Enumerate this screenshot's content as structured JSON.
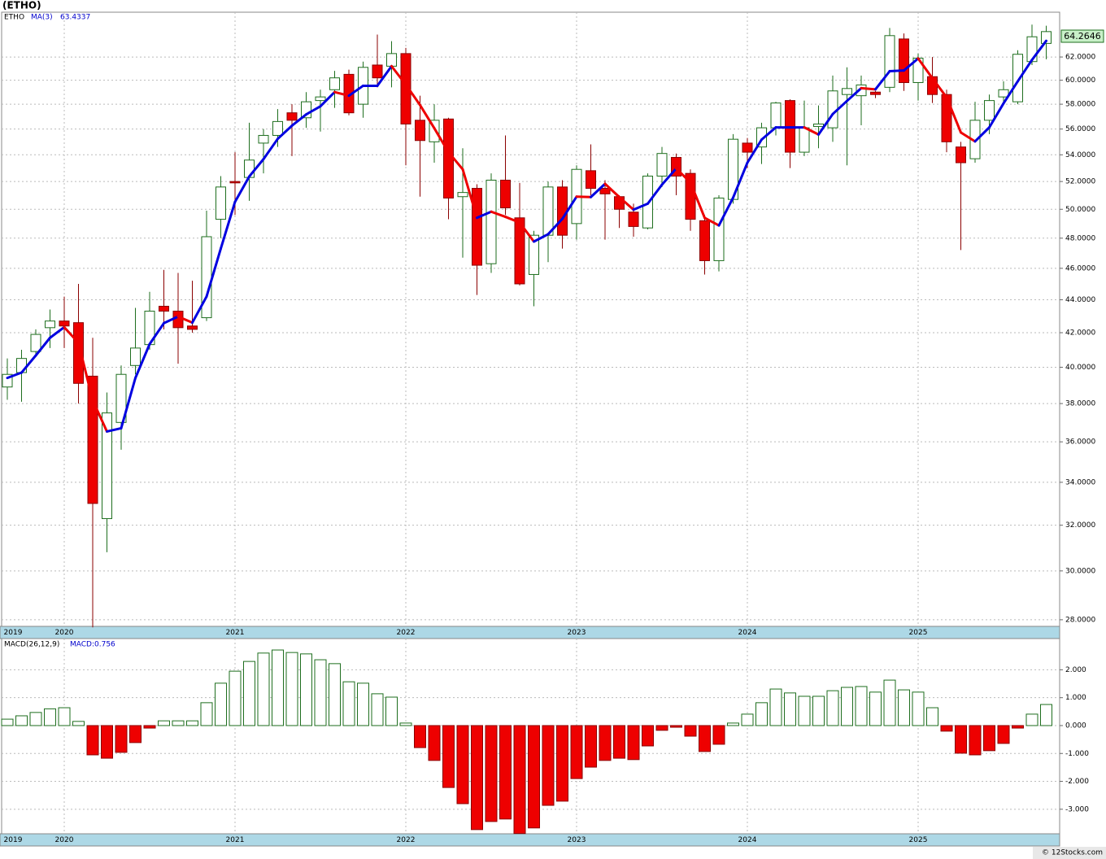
{
  "chart_data": [
    {
      "type": "candlestick",
      "title": "(ETHO)",
      "symbol": "ETHO",
      "categories": [
        "2019",
        null,
        null,
        null,
        "2020",
        null,
        null,
        null,
        null,
        null,
        null,
        null,
        null,
        null,
        null,
        null,
        "2021",
        null,
        null,
        null,
        null,
        null,
        null,
        null,
        null,
        null,
        null,
        null,
        "2022",
        null,
        null,
        null,
        null,
        null,
        null,
        null,
        null,
        null,
        null,
        null,
        "2023",
        null,
        null,
        null,
        null,
        null,
        null,
        null,
        null,
        null,
        null,
        null,
        "2024",
        null,
        null,
        null,
        null,
        null,
        null,
        null,
        null,
        null,
        null,
        null,
        "2025",
        null,
        null,
        null,
        null,
        null,
        null,
        null,
        null,
        null
      ],
      "open": [
        38.9,
        39.7,
        40.9,
        42.3,
        42.7,
        42.6,
        39.5,
        32.3,
        37.0,
        40.1,
        41.3,
        43.6,
        43.3,
        42.4,
        42.9,
        49.3,
        52.0,
        52.3,
        54.9,
        55.5,
        57.3,
        56.9,
        58.3,
        59.2,
        60.5,
        58.0,
        61.3,
        61.2,
        62.3,
        56.7,
        55.0,
        56.8,
        50.9,
        51.5,
        46.3,
        52.1,
        49.4,
        45.6,
        48.2,
        51.6,
        49.0,
        52.8,
        51.5,
        50.9,
        49.8,
        48.7,
        52.4,
        53.8,
        52.6,
        49.2,
        46.5,
        50.7,
        54.9,
        54.6,
        56.1,
        58.3,
        54.2,
        56.2,
        56.1,
        58.8,
        58.7,
        59.0,
        59.4,
        63.6,
        59.8,
        60.3,
        58.8,
        54.6,
        53.7,
        56.7,
        58.6,
        58.2,
        61.6,
        63.2
      ],
      "high": [
        40.5,
        41.0,
        42.2,
        43.4,
        44.2,
        45.0,
        41.7,
        38.6,
        40.1,
        43.5,
        44.5,
        45.9,
        45.7,
        45.2,
        49.9,
        52.4,
        54.2,
        56.5,
        56.0,
        57.6,
        58.0,
        59.0,
        59.2,
        60.8,
        60.9,
        61.6,
        64.0,
        63.4,
        62.8,
        58.7,
        58.0,
        56.9,
        54.5,
        51.8,
        52.6,
        55.5,
        51.9,
        48.5,
        52.0,
        52.1,
        53.2,
        54.8,
        52.1,
        51.0,
        50.4,
        52.6,
        54.6,
        54.1,
        52.9,
        49.6,
        51.0,
        55.6,
        55.3,
        56.5,
        58.2,
        58.4,
        58.3,
        57.9,
        60.4,
        61.1,
        60.4,
        59.1,
        64.6,
        64.1,
        62.3,
        62.0,
        59.2,
        55.0,
        58.2,
        58.8,
        59.9,
        62.6,
        64.9,
        64.8
      ],
      "low": [
        38.2,
        38.1,
        40.7,
        41.1,
        41.1,
        38.0,
        27.7,
        30.8,
        35.6,
        39.6,
        41.0,
        42.2,
        40.2,
        42.0,
        42.7,
        48.0,
        49.6,
        50.6,
        52.6,
        54.6,
        53.9,
        56.1,
        55.8,
        57.7,
        57.1,
        56.9,
        59.4,
        59.4,
        53.2,
        50.9,
        53.4,
        49.3,
        46.7,
        44.3,
        45.7,
        49.6,
        44.9,
        43.6,
        46.4,
        47.3,
        47.9,
        51.0,
        47.9,
        48.7,
        48.1,
        48.6,
        51.6,
        51.0,
        48.5,
        45.6,
        45.8,
        50.4,
        53.0,
        53.3,
        55.5,
        53.0,
        53.9,
        54.5,
        55.0,
        53.2,
        56.3,
        58.5,
        59.0,
        59.1,
        58.3,
        58.1,
        54.2,
        47.2,
        53.4,
        55.6,
        58.0,
        58.0,
        61.3,
        61.8
      ],
      "close": [
        39.6,
        40.5,
        41.9,
        42.7,
        42.4,
        39.1,
        33.0,
        37.5,
        39.6,
        41.1,
        43.3,
        43.3,
        42.3,
        42.2,
        48.1,
        51.6,
        51.9,
        53.6,
        55.5,
        56.6,
        56.7,
        58.2,
        58.6,
        60.2,
        57.3,
        61.1,
        60.2,
        62.3,
        56.4,
        55.1,
        56.7,
        50.8,
        51.2,
        46.2,
        52.1,
        50.1,
        45.0,
        48.2,
        51.6,
        48.2,
        52.9,
        51.5,
        51.1,
        50.0,
        48.8,
        52.4,
        54.1,
        52.4,
        49.3,
        46.5,
        50.8,
        55.2,
        54.2,
        56.1,
        58.1,
        54.2,
        56.1,
        56.4,
        59.1,
        59.3,
        59.6,
        58.8,
        63.9,
        59.8,
        61.9,
        58.8,
        55.0,
        53.4,
        56.7,
        58.3,
        59.2,
        62.24,
        63.7965,
        64.2646
      ],
      "ma": {
        "name": "MA(3)",
        "up_color": "#0000e0",
        "down_color": "#ee0000",
        "values": [
          39.4,
          39.7,
          40.67,
          41.7,
          42.33,
          41.4,
          38.17,
          36.53,
          36.7,
          39.4,
          41.33,
          42.57,
          42.97,
          42.6,
          44.2,
          47.3,
          50.53,
          52.37,
          53.67,
          55.23,
          56.27,
          57.17,
          57.83,
          59.0,
          58.7,
          59.53,
          59.53,
          61.2,
          59.63,
          57.93,
          56.07,
          54.2,
          52.9,
          49.4,
          49.83,
          49.47,
          49.07,
          47.77,
          48.27,
          49.33,
          50.9,
          50.87,
          51.83,
          50.87,
          49.97,
          50.4,
          51.77,
          52.97,
          51.93,
          49.4,
          48.87,
          50.83,
          53.4,
          55.17,
          56.13,
          56.13,
          56.13,
          55.57,
          57.2,
          58.27,
          59.33,
          59.23,
          60.77,
          60.83,
          61.87,
          60.17,
          58.57,
          55.73,
          55.03,
          56.13,
          58.07,
          59.91,
          61.75,
          63.4337
        ]
      },
      "up_color": "#ffffff",
      "up_border": "#1e6e1e",
      "down_color": "#ee0000",
      "down_border": "#8b0000",
      "log_scale": true,
      "grid": true,
      "ylim": [
        27.74,
        66.05
      ],
      "yticks": [
        {
          "value": 28,
          "label": "28.0000"
        },
        {
          "value": 30,
          "label": "30.0000"
        },
        {
          "value": 32,
          "label": "32.0000"
        },
        {
          "value": 34,
          "label": "34.0000"
        },
        {
          "value": 36,
          "label": "36.0000"
        },
        {
          "value": 38,
          "label": "38.0000"
        },
        {
          "value": 40,
          "label": "40.0000"
        },
        {
          "value": 42,
          "label": "42.0000"
        },
        {
          "value": 44,
          "label": "44.0000"
        },
        {
          "value": 46,
          "label": "46.0000"
        },
        {
          "value": 48,
          "label": "48.0000"
        },
        {
          "value": 50,
          "label": "50.0000"
        },
        {
          "value": 52,
          "label": "52.0000"
        },
        {
          "value": 54,
          "label": "54.0000"
        },
        {
          "value": 56,
          "label": "56.0000"
        },
        {
          "value": 58,
          "label": "58.0000"
        },
        {
          "value": 60,
          "label": "60.0000"
        },
        {
          "value": 62,
          "label": "62.0000"
        }
      ]
    },
    {
      "type": "bar",
      "title": "MACD(26,12,9)",
      "value_prefix": "MACD:",
      "categories": [
        "2019",
        null,
        null,
        null,
        "2020",
        null,
        null,
        null,
        null,
        null,
        null,
        null,
        null,
        null,
        null,
        null,
        "2021",
        null,
        null,
        null,
        null,
        null,
        null,
        null,
        null,
        null,
        null,
        null,
        "2022",
        null,
        null,
        null,
        null,
        null,
        null,
        null,
        null,
        null,
        null,
        null,
        "2023",
        null,
        null,
        null,
        null,
        null,
        null,
        null,
        null,
        null,
        null,
        null,
        "2024",
        null,
        null,
        null,
        null,
        null,
        null,
        null,
        null,
        null,
        null,
        null,
        "2025",
        null,
        null,
        null,
        null,
        null,
        null,
        null,
        null,
        null
      ],
      "values": [
        0.23,
        0.35,
        0.47,
        0.6,
        0.64,
        0.15,
        -1.05,
        -1.17,
        -0.96,
        -0.61,
        -0.09,
        0.17,
        0.17,
        0.17,
        0.82,
        1.52,
        1.95,
        2.3,
        2.6,
        2.71,
        2.62,
        2.57,
        2.36,
        2.22,
        1.57,
        1.52,
        1.14,
        1.02,
        0.09,
        -0.79,
        -1.25,
        -2.22,
        -2.8,
        -3.73,
        -3.44,
        -3.35,
        -3.87,
        -3.67,
        -2.86,
        -2.71,
        -1.9,
        -1.49,
        -1.25,
        -1.17,
        -1.22,
        -0.73,
        -0.17,
        -0.06,
        -0.38,
        -0.93,
        -0.67,
        0.09,
        0.41,
        0.82,
        1.31,
        1.17,
        1.05,
        1.05,
        1.25,
        1.37,
        1.4,
        1.2,
        1.63,
        1.28,
        1.2,
        0.64,
        -0.2,
        -0.99,
        -1.05,
        -0.9,
        -0.64,
        -0.09,
        0.41,
        0.756
      ],
      "up_color": "#ffffff",
      "up_border": "#1e6e1e",
      "down_color": "#ee0000",
      "down_border": "#8b0000",
      "grid": true,
      "ylim": [
        -3.88,
        3.12
      ],
      "yticks": [
        {
          "value": 2,
          "label": "2.000"
        },
        {
          "value": 1,
          "label": "1.000"
        },
        {
          "value": 0,
          "label": "0.000"
        },
        {
          "value": -1,
          "label": "-1.000"
        },
        {
          "value": -2,
          "label": "-2.000"
        },
        {
          "value": -3,
          "label": "-3.000"
        }
      ]
    }
  ],
  "footer": "© 12Stocks.com"
}
